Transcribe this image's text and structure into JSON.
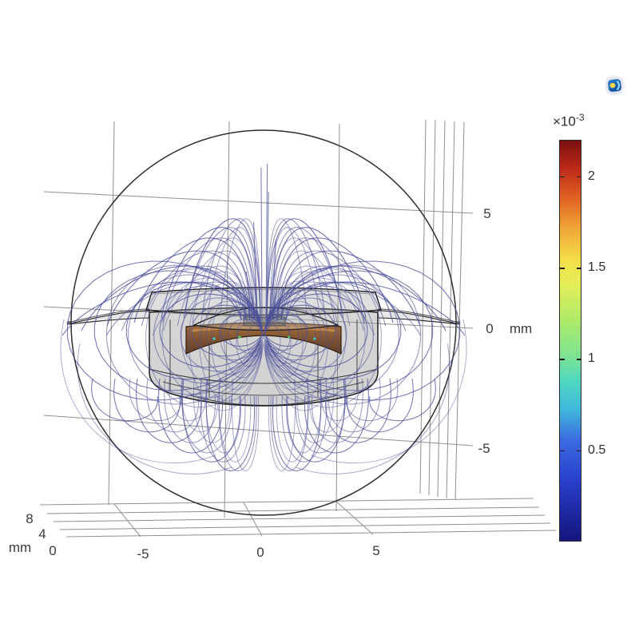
{
  "window": {
    "background": "#ffffff"
  },
  "colorbar": {
    "exp_base": "×10",
    "exp_sup": "-3",
    "ticks": [
      "2",
      "1.5",
      "1",
      "0.5"
    ],
    "tick_values": [
      2,
      1.5,
      1,
      0.5
    ],
    "range": [
      0,
      2.2
    ],
    "gradient_stops": [
      {
        "pct": 0,
        "color": "#15157e"
      },
      {
        "pct": 8,
        "color": "#1f2aa8"
      },
      {
        "pct": 16,
        "color": "#2a43cf"
      },
      {
        "pct": 25,
        "color": "#3a6ae0"
      },
      {
        "pct": 33,
        "color": "#41b9dc"
      },
      {
        "pct": 40,
        "color": "#4fd8c0"
      },
      {
        "pct": 46,
        "color": "#7ce393"
      },
      {
        "pct": 55,
        "color": "#aeea6a"
      },
      {
        "pct": 64,
        "color": "#e3ee58"
      },
      {
        "pct": 70,
        "color": "#f4df4a"
      },
      {
        "pct": 78,
        "color": "#f0a636"
      },
      {
        "pct": 86,
        "color": "#df5f22"
      },
      {
        "pct": 93,
        "color": "#bd2a18"
      },
      {
        "pct": 100,
        "color": "#7a0f10"
      }
    ]
  },
  "axes": {
    "z": {
      "ticks": [
        "5",
        "0",
        "-5"
      ],
      "unit": "mm"
    },
    "x": {
      "ticks": [
        "-5",
        "0",
        "5"
      ]
    },
    "y": {
      "ticks": [
        "8",
        "4",
        "0"
      ],
      "unit": "mm"
    }
  },
  "scene": {
    "streamline_color": "#4b5098",
    "outline_color": "#2f2f2f",
    "grid_color": "#909090",
    "label_color": "#3a3a3a",
    "coil_color": "#8a5327"
  },
  "chart_data": {
    "type": "line",
    "description": "3D streamline plot of magnetic flux density around a cylindrical loudspeaker magnet/voice-coil assembly inside a spherical air domain",
    "title": "",
    "x_axis": {
      "ticks": [
        -5,
        0,
        5
      ],
      "unit": "mm"
    },
    "y_axis": {
      "ticks": [
        8,
        4,
        0
      ],
      "unit": "mm"
    },
    "z_axis": {
      "ticks": [
        5,
        0,
        -5
      ],
      "unit": "mm"
    },
    "colorbar": {
      "scale_label_base": "×10",
      "scale_label_exponent": "-3",
      "ticks": [
        2,
        1.5,
        1,
        0.5
      ],
      "range_estimate": [
        0,
        2.2
      ],
      "orientation": "vertical",
      "position": "right"
    },
    "grid": true,
    "legend_position": "right"
  }
}
